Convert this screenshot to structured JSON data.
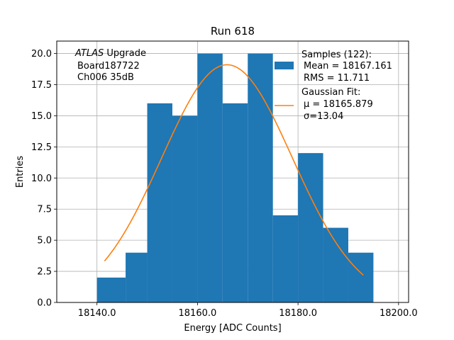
{
  "chart_data": {
    "type": "bar",
    "title": "Run 618",
    "xlabel": "Energy [ADC Counts]",
    "ylabel": "Entries",
    "xlim": [
      18132.0,
      18202.0
    ],
    "ylim": [
      0,
      21.0
    ],
    "xticks": [
      18140.0,
      18160.0,
      18180.0,
      18200.0
    ],
    "xtick_labels": [
      "18140.0",
      "18160.0",
      "18180.0",
      "18200.0"
    ],
    "yticks": [
      0,
      2.5,
      5,
      7.5,
      10,
      12.5,
      15,
      17.5,
      20
    ],
    "ytick_labels": [
      "0.0",
      "2.5",
      "5.0",
      "7.5",
      "10.0",
      "12.5",
      "15.0",
      "17.5",
      "20.0"
    ],
    "grid": true,
    "bar_color": "#1f77b4",
    "fit_color": "#ff7f0e",
    "bin_edges": [
      18140.0,
      18145.7,
      18150.0,
      18155.0,
      18160.0,
      18165.0,
      18170.0,
      18175.0,
      18180.0,
      18185.0,
      18190.0,
      18195.0
    ],
    "counts": [
      2,
      4,
      16,
      15,
      20,
      16,
      20,
      7,
      12,
      6,
      4
    ],
    "fit": {
      "mu": 18165.879,
      "sigma": 13.04,
      "amplitude": 19.1,
      "x_range": [
        18141.5,
        18193.0
      ]
    },
    "annotation_lines": [
      "ATLAS Upgrade",
      "Board187722",
      "Ch006 35dB"
    ],
    "annotation_italic": "ATLAS",
    "legend": {
      "placement": "top-right",
      "samples_title": "Samples (122):",
      "samples_mean": "Mean = 18167.161",
      "samples_rms": "RMS = 11.711",
      "fit_title": "Gaussian Fit:",
      "fit_mu": "μ = 18165.879",
      "fit_sigma": "σ=13.04"
    }
  }
}
